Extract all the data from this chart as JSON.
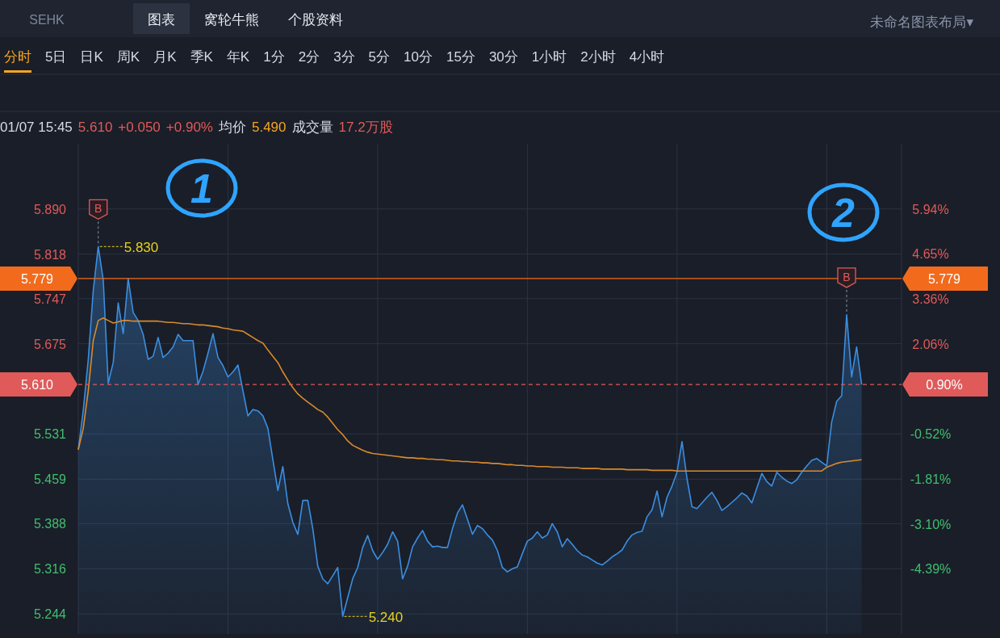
{
  "chart_data": {
    "type": "area",
    "annotations": [
      "SEHK",
      "图表",
      "窝轮牛熊",
      "个股资料",
      "未命名图表布局▾",
      "分时",
      "5日",
      "日K",
      "周K",
      "月K",
      "季K",
      "年K",
      "1分",
      "2分",
      "3分",
      "5分",
      "10分",
      "15分",
      "30分",
      "1小时",
      "2小时",
      "4小时",
      "01/07 15:45",
      "5.610",
      "+0.050",
      "+0.90%",
      "均价",
      "5.490",
      "成交量",
      "17.2万股",
      "1",
      "2",
      "5.830",
      "5.240",
      "0.90%",
      {
        "text": "B",
        "y": 5.83
      },
      {
        "text": "B",
        "y": 5.721
      }
    ],
    "categories": [
      null,
      null,
      null,
      null,
      null,
      null,
      null,
      null,
      null,
      null,
      null,
      null,
      null,
      null,
      null,
      null,
      null,
      null,
      null,
      null,
      null,
      null,
      null,
      null,
      null,
      null,
      null,
      null,
      null,
      null,
      null,
      null,
      null,
      null,
      null,
      null,
      null,
      null,
      null,
      null,
      null,
      null,
      null,
      null,
      null,
      null,
      null,
      null,
      null,
      null,
      null,
      null,
      null,
      null,
      null,
      null,
      null,
      null,
      null,
      null,
      null,
      null,
      null,
      null,
      null,
      null,
      null,
      null,
      null,
      null,
      null,
      null,
      null,
      null,
      null,
      null,
      null,
      null,
      null,
      null,
      null,
      null,
      null,
      null,
      null,
      null,
      null,
      null,
      null,
      null,
      null,
      null,
      null,
      null,
      null,
      null,
      null,
      null,
      null,
      null,
      null,
      null,
      null,
      null,
      null,
      null,
      null,
      null,
      null,
      null,
      null,
      null,
      null,
      null,
      null,
      null,
      null,
      null,
      null,
      null,
      null,
      null,
      null,
      null,
      null,
      null,
      null,
      null,
      null,
      null,
      null,
      null,
      null,
      null,
      null,
      null,
      null,
      null,
      null,
      null,
      null,
      null,
      null,
      null,
      null,
      null,
      null,
      null,
      null,
      null,
      null,
      null,
      null,
      null,
      null,
      null,
      null,
      null,
      null,
      null,
      null,
      null,
      null,
      null,
      null,
      null
    ],
    "series": [
      {
        "color": "#3b8ee0",
        "values": [
          5.506,
          5.569,
          5.65,
          5.76,
          5.83,
          5.777,
          5.612,
          5.645,
          5.74,
          5.691,
          5.779,
          5.725,
          5.712,
          5.69,
          5.65,
          5.655,
          5.685,
          5.653,
          5.66,
          5.67,
          5.69,
          5.68,
          5.68,
          5.68,
          5.61,
          5.631,
          5.66,
          5.691,
          5.653,
          5.64,
          5.622,
          5.63,
          5.641,
          5.6,
          5.56,
          5.57,
          5.568,
          5.56,
          5.54,
          5.49,
          5.441,
          5.479,
          5.42,
          5.39,
          5.371,
          5.425,
          5.425,
          5.38,
          5.32,
          5.3,
          5.292,
          5.305,
          5.318,
          5.24,
          5.27,
          5.3,
          5.318,
          5.35,
          5.369,
          5.345,
          5.331,
          5.342,
          5.355,
          5.375,
          5.36,
          5.3,
          5.32,
          5.351,
          5.365,
          5.377,
          5.36,
          5.351,
          5.352,
          5.35,
          5.35,
          5.38,
          5.405,
          5.418,
          5.395,
          5.371,
          5.385,
          5.38,
          5.37,
          5.362,
          5.345,
          5.318,
          5.311,
          5.316,
          5.319,
          5.34,
          5.36,
          5.365,
          5.375,
          5.365,
          5.37,
          5.388,
          5.375,
          5.351,
          5.364,
          5.355,
          5.345,
          5.338,
          5.335,
          5.33,
          5.325,
          5.322,
          5.328,
          5.335,
          5.34,
          5.346,
          5.36,
          5.37,
          5.374,
          5.376,
          5.399,
          5.41,
          5.44,
          5.399,
          5.43,
          5.448,
          5.47,
          5.519,
          5.46,
          5.415,
          5.412,
          5.421,
          5.43,
          5.438,
          5.425,
          5.409,
          5.415,
          5.422,
          5.429,
          5.437,
          5.432,
          5.421,
          5.445,
          5.468,
          5.455,
          5.448,
          5.47,
          5.462,
          5.456,
          5.452,
          5.458,
          5.47,
          5.48,
          5.489,
          5.492,
          5.486,
          5.48,
          5.55,
          5.583,
          5.592,
          5.721,
          5.622,
          5.67,
          5.61,
          null,
          null,
          null,
          null,
          null,
          null,
          null,
          null
        ]
      },
      {
        "type": "line",
        "color": "#d88a2c",
        "values": [
          5.506,
          5.54,
          5.6,
          5.68,
          5.712,
          5.716,
          5.712,
          5.708,
          5.71,
          5.712,
          5.712,
          5.711,
          5.711,
          5.711,
          5.711,
          5.711,
          5.711,
          5.71,
          5.709,
          5.709,
          5.708,
          5.707,
          5.707,
          5.706,
          5.705,
          5.705,
          5.704,
          5.703,
          5.702,
          5.7,
          5.699,
          5.697,
          5.696,
          5.695,
          5.69,
          5.685,
          5.68,
          5.676,
          5.665,
          5.655,
          5.645,
          5.63,
          5.617,
          5.605,
          5.595,
          5.588,
          5.582,
          5.576,
          5.57,
          5.566,
          5.558,
          5.548,
          5.538,
          5.53,
          5.52,
          5.513,
          5.509,
          5.505,
          5.502,
          5.5,
          5.499,
          5.498,
          5.497,
          5.496,
          5.495,
          5.494,
          5.493,
          5.493,
          5.492,
          5.492,
          5.491,
          5.491,
          5.49,
          5.49,
          5.489,
          5.488,
          5.488,
          5.487,
          5.487,
          5.486,
          5.486,
          5.485,
          5.485,
          5.484,
          5.484,
          5.483,
          5.482,
          5.482,
          5.481,
          5.481,
          5.48,
          5.48,
          5.479,
          5.479,
          5.479,
          5.478,
          5.478,
          5.478,
          5.477,
          5.477,
          5.477,
          5.476,
          5.476,
          5.476,
          5.476,
          5.475,
          5.475,
          5.475,
          5.475,
          5.475,
          5.474,
          5.474,
          5.474,
          5.474,
          5.474,
          5.473,
          5.473,
          5.473,
          5.473,
          5.473,
          5.472,
          5.472,
          5.472,
          5.472,
          5.472,
          5.472,
          5.472,
          5.472,
          5.472,
          5.472,
          5.472,
          5.472,
          5.472,
          5.472,
          5.472,
          5.472,
          5.472,
          5.472,
          5.472,
          5.472,
          5.472,
          5.472,
          5.472,
          5.472,
          5.472,
          5.472,
          5.472,
          5.472,
          5.472,
          5.472,
          5.478,
          5.481,
          5.484,
          5.486,
          5.487,
          5.488,
          5.489,
          5.49,
          null,
          null,
          null,
          null,
          null,
          null,
          null,
          null
        ]
      }
    ],
    "ylim": [
      5.212,
      5.994
    ],
    "yticks": [
      {
        "value": 5.244,
        "label": "5.244"
      },
      {
        "value": 5.316,
        "label": "5.316"
      },
      {
        "value": 5.388,
        "label": "5.388"
      },
      {
        "value": 5.459,
        "label": "5.459"
      },
      {
        "value": 5.531,
        "label": "5.531"
      },
      {
        "value": 5.675,
        "label": "5.675"
      },
      {
        "value": 5.747,
        "label": "5.747"
      },
      {
        "value": 5.818,
        "label": "5.818"
      },
      {
        "value": 5.89,
        "label": "5.890"
      }
    ],
    "y2lim": [
      -6.26,
      7.81
    ],
    "y2ticks": [
      {
        "value": -4.39,
        "label": "-4.39%"
      },
      {
        "value": -3.1,
        "label": "-3.10%"
      },
      {
        "value": -1.81,
        "label": "-1.81%"
      },
      {
        "value": -0.52,
        "label": "-0.52%"
      },
      {
        "value": 2.06,
        "label": "2.06%"
      },
      {
        "value": 3.36,
        "label": "3.36%"
      },
      {
        "value": 4.65,
        "label": "4.65%"
      },
      {
        "value": 5.94,
        "label": "5.94%"
      }
    ],
    "ref_lines": [
      {
        "axis": "y",
        "value": 5.779,
        "label": "5.779",
        "color": "#f26b1d",
        "line_style": "solid"
      },
      {
        "axis": "y",
        "value": 5.61,
        "label": "5.610",
        "color": "#e05a5a",
        "line_style": "dashed"
      }
    ],
    "grid": true,
    "tick_labels": "y"
  }
}
